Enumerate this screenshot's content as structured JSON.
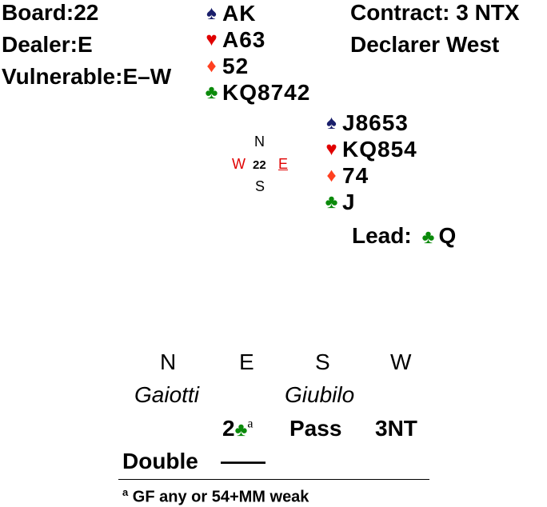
{
  "board": {
    "label": "Board:",
    "number": "22"
  },
  "dealer": {
    "label": "Dealer:",
    "value": "E"
  },
  "vulnerable": {
    "label": "Vulnerable:",
    "value": "E–W"
  },
  "contract": {
    "label": "Contract:",
    "value": "3 NTX",
    "declarer": "Declarer West"
  },
  "north_hand": {
    "spades": "AK",
    "hearts": "A63",
    "diamonds": "52",
    "clubs": "KQ8742"
  },
  "east_hand": {
    "spades": "J8653",
    "hearts": "KQ854",
    "diamonds": "74",
    "clubs": "J"
  },
  "compass": {
    "n": "N",
    "s": "S",
    "w": "W",
    "e": "E",
    "board": "22"
  },
  "lead": {
    "label": "Lead:",
    "card": "Q"
  },
  "auction": {
    "headers": [
      "N",
      "E",
      "S",
      "W"
    ],
    "players": {
      "north": "Gaiotti",
      "south": "Giubilo"
    },
    "row1": {
      "east": "2",
      "east_note": "a",
      "south": "Pass",
      "west": "3NT"
    },
    "row2": {
      "north": "Double",
      "east": "——"
    }
  },
  "footnote": {
    "mark": "a",
    "text": "GF any or 54+MM weak"
  },
  "colors": {
    "spade": "#1a1f6b",
    "heart": "#e00000",
    "diamond": "#ff4020",
    "club": "#0a8a0a",
    "declarer_mark": "#e00000"
  },
  "icons": {
    "spade": "spade-icon",
    "heart": "heart-icon",
    "diamond": "diamond-icon",
    "club": "club-icon"
  }
}
